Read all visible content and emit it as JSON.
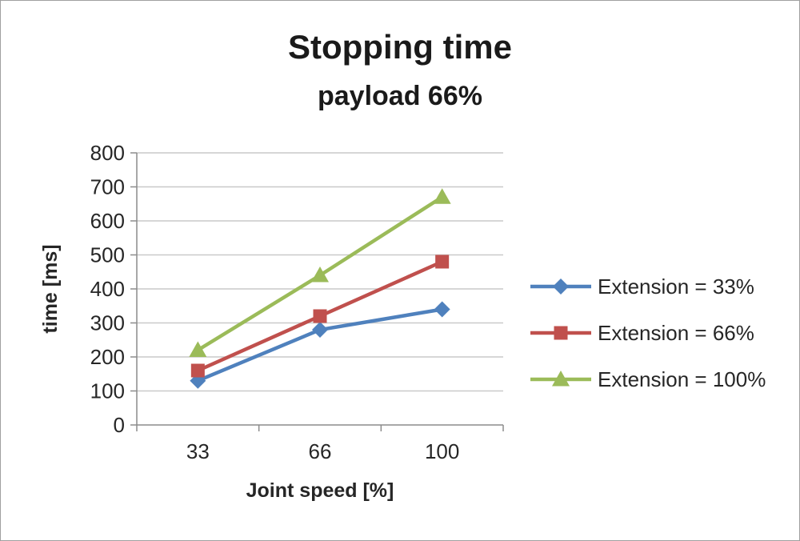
{
  "chart_data": {
    "type": "line",
    "title": "Stopping time",
    "subtitle": "payload 66%",
    "xlabel": "Joint speed [%]",
    "ylabel": "time [ms]",
    "categories": [
      "33",
      "66",
      "100"
    ],
    "ylim": [
      0,
      800
    ],
    "ytick_step": 100,
    "grid": "horizontal",
    "legend_position": "right",
    "series": [
      {
        "name": "Extension = 33%",
        "marker": "diamond",
        "color": "#4F81BD",
        "values": [
          130,
          280,
          340
        ]
      },
      {
        "name": "Extension = 66%",
        "marker": "square",
        "color": "#C0504D",
        "values": [
          160,
          320,
          480
        ]
      },
      {
        "name": "Extension = 100%",
        "marker": "triangle",
        "color": "#9BBB59",
        "values": [
          220,
          440,
          670
        ]
      }
    ]
  },
  "style": {
    "grid_color": "#c9c9c9",
    "axis_color": "#8c8c8c",
    "text_color": "#262626"
  }
}
